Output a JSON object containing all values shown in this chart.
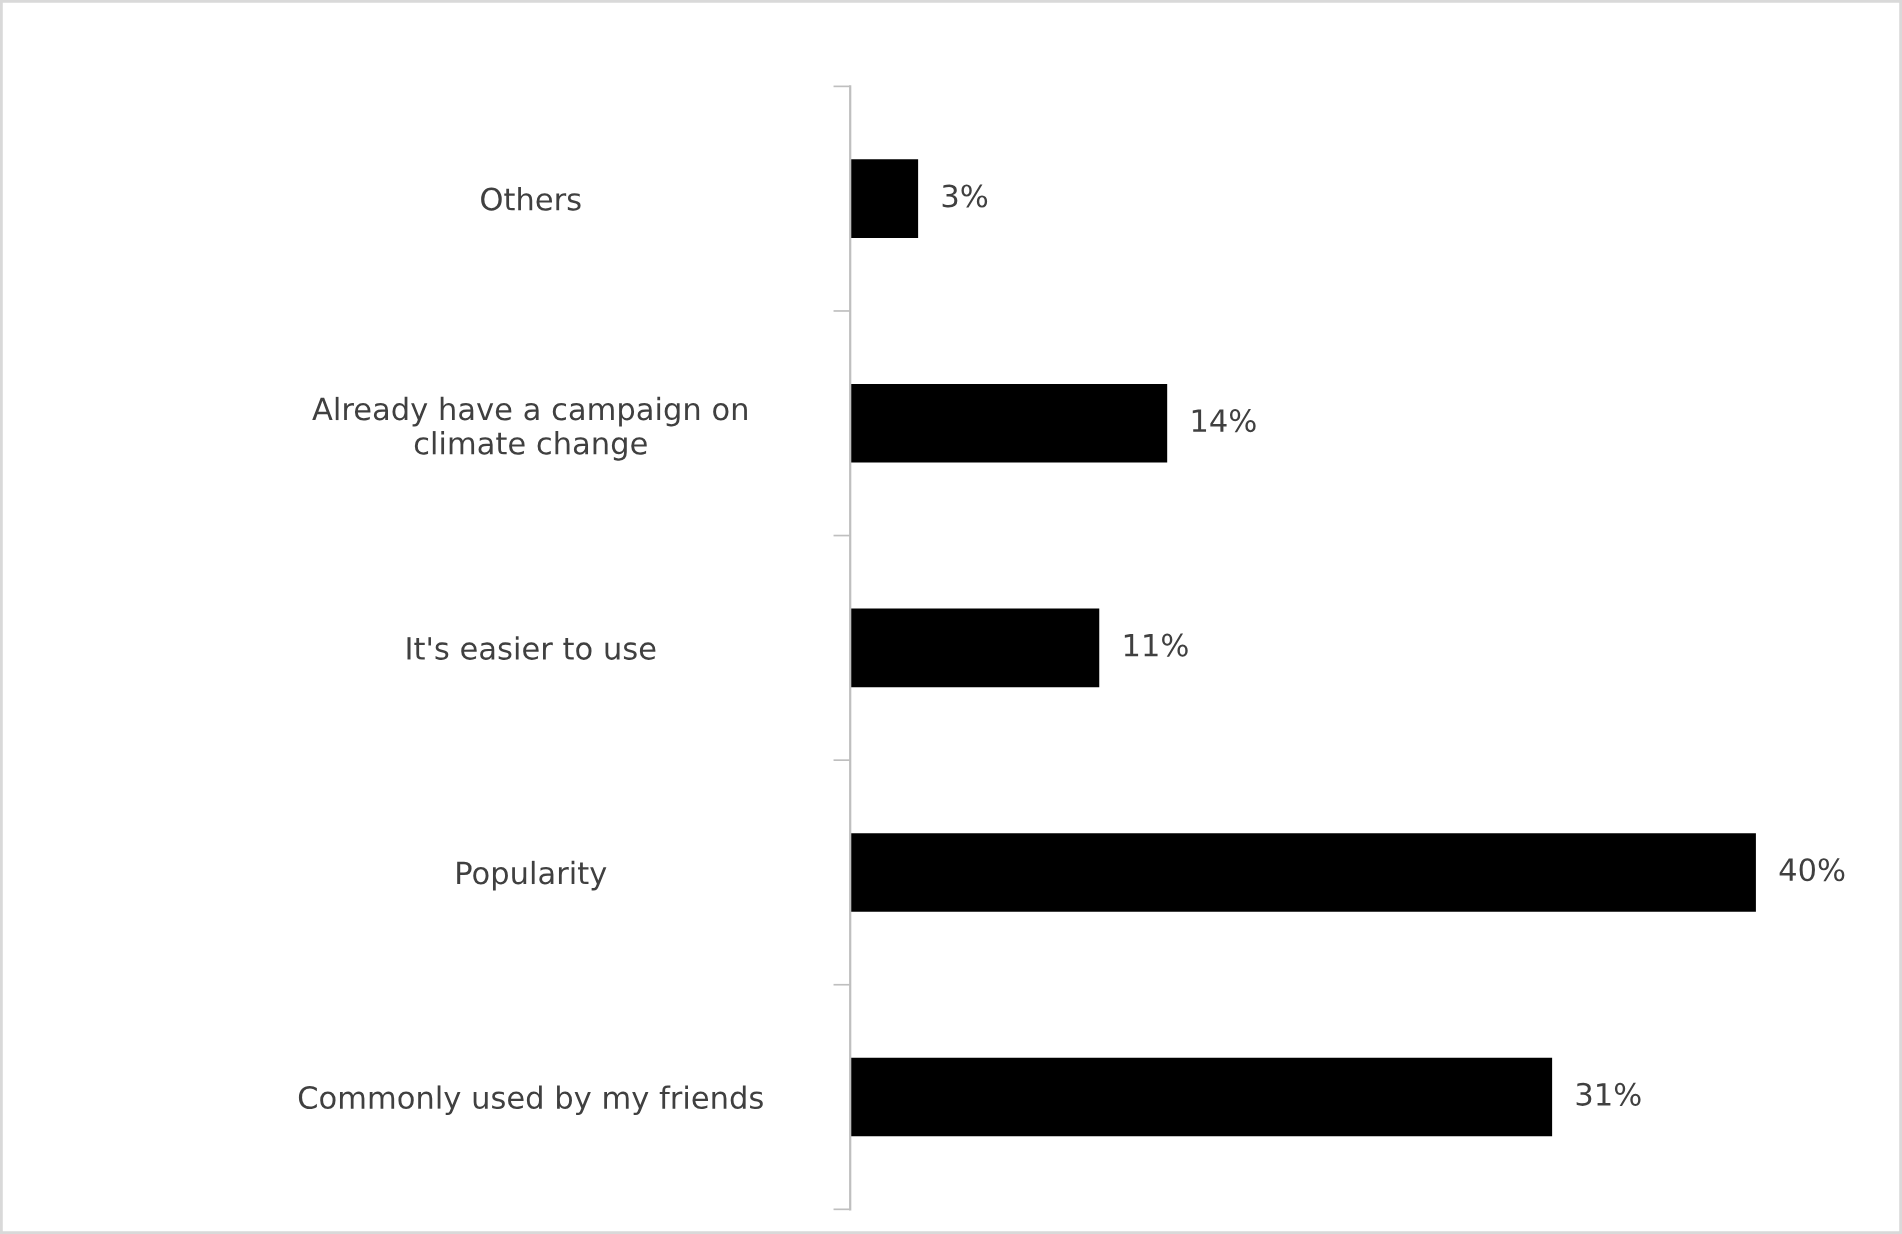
{
  "chart_data": {
    "type": "bar",
    "orientation": "horizontal",
    "categories": [
      "Others",
      "Already have a campaign on\nclimate change",
      "It's easier to use",
      "Popularity",
      "Commonly used by my friends"
    ],
    "values": [
      3,
      14,
      11,
      40,
      31
    ],
    "value_labels": [
      "3%",
      "14%",
      "11%",
      "40%",
      "31%"
    ],
    "color": "#000000",
    "grid": false,
    "legend": false,
    "tick_labels": "y"
  }
}
